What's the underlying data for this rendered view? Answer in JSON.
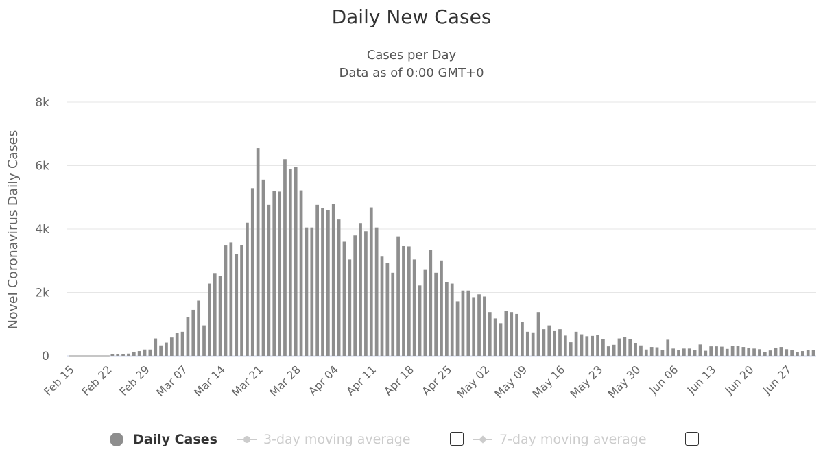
{
  "chart_data": {
    "type": "bar",
    "title": "Daily New Cases",
    "subtitle": [
      "Cases per Day",
      "Data as of 0:00 GMT+0"
    ],
    "ylabel": "Novel Coronavirus Daily Cases",
    "xlabel": "",
    "ylim": [
      0,
      8000
    ],
    "y_ticks": [
      0,
      2000,
      4000,
      6000,
      8000
    ],
    "y_tick_labels": [
      "0",
      "2k",
      "4k",
      "6k",
      "8k"
    ],
    "x_tick_labels": [
      "Feb 15",
      "Feb 22",
      "Feb 29",
      "Mar 07",
      "Mar 14",
      "Mar 21",
      "Mar 28",
      "Apr 04",
      "Apr 11",
      "Apr 18",
      "Apr 25",
      "May 02",
      "May 09",
      "May 16",
      "May 23",
      "May 30",
      "Jun 06",
      "Jun 13",
      "Jun 20",
      "Jun 27"
    ],
    "start_date": "Feb 15",
    "grid": true,
    "bar_color": "#8e8e8e",
    "series": [
      {
        "name": "Daily Cases",
        "values": [
          0,
          0,
          0,
          0,
          0,
          0,
          0,
          0,
          50,
          60,
          60,
          70,
          130,
          150,
          200,
          200,
          550,
          330,
          420,
          580,
          720,
          760,
          1220,
          1450,
          1740,
          960,
          2280,
          2610,
          2520,
          3480,
          3580,
          3200,
          3500,
          4200,
          5290,
          6550,
          5560,
          4760,
          5210,
          5180,
          6200,
          5900,
          5960,
          5220,
          4050,
          4050,
          4760,
          4650,
          4590,
          4790,
          4300,
          3600,
          3040,
          3800,
          4190,
          3930,
          4680,
          4050,
          3130,
          2930,
          2620,
          3770,
          3460,
          3450,
          3040,
          2220,
          2710,
          3350,
          2620,
          3010,
          2320,
          2280,
          1720,
          2060,
          2060,
          1850,
          1940,
          1870,
          1380,
          1180,
          1030,
          1410,
          1380,
          1320,
          1080,
          760,
          740,
          1380,
          840,
          960,
          780,
          840,
          640,
          430,
          760,
          680,
          620,
          630,
          650,
          530,
          300,
          350,
          550,
          590,
          530,
          400,
          330,
          200,
          280,
          270,
          190,
          510,
          230,
          180,
          230,
          230,
          190,
          360,
          160,
          300,
          300,
          290,
          220,
          320,
          320,
          280,
          240,
          230,
          210,
          110,
          170,
          260,
          280,
          210,
          180,
          120,
          150,
          180,
          190
        ]
      },
      {
        "name": "3-day moving average",
        "values": []
      },
      {
        "name": "7-day moving average",
        "values": []
      }
    ],
    "legend": [
      "Daily Cases",
      "3-day moving average",
      "7-day moving average"
    ]
  },
  "colors": {
    "bar": "#8e8e8e",
    "grid": "#e6e6e6",
    "axis_text": "#666666",
    "legend_inactive": "#cccccc"
  }
}
